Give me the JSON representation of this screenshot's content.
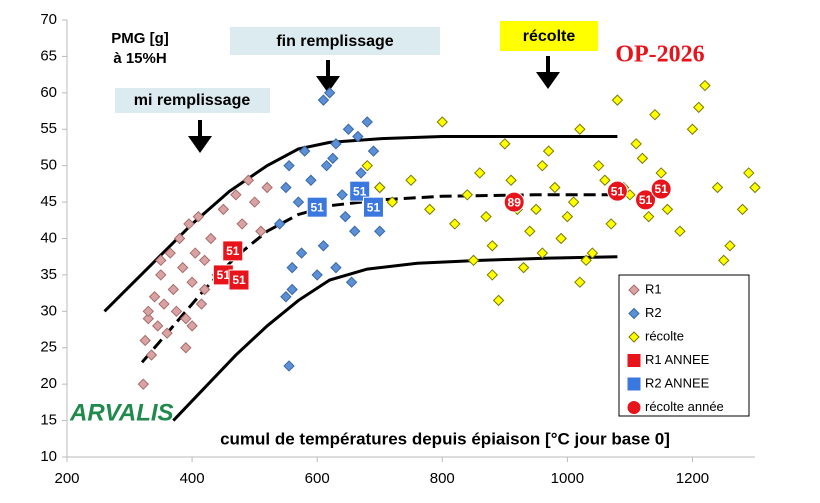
{
  "chart_data": {
    "type": "scatter",
    "xlim": [
      200,
      1300
    ],
    "ylim": [
      10,
      70
    ],
    "xticks": [
      200,
      400,
      600,
      800,
      1000,
      1200
    ],
    "yticks": [
      10,
      15,
      20,
      25,
      30,
      35,
      40,
      45,
      50,
      55,
      60,
      65,
      70
    ],
    "grid": false,
    "legend": "lower right",
    "x_label": "cumul de températures depuis épiaison [°C jour base 0]",
    "y_label": [
      "PMG [g]",
      "à 15%H"
    ],
    "annotations": [
      "mi remplissage",
      "fin remplissage",
      "récolte",
      "OP-2026"
    ],
    "logo": "ARVALIS",
    "series": [
      {
        "name": "R1",
        "marker": "diamond",
        "color": "#d9a3a3",
        "stroke": "#a86d6d",
        "x": [
          322,
          325,
          330,
          335,
          340,
          345,
          350,
          355,
          360,
          365,
          370,
          375,
          380,
          385,
          390,
          395,
          400,
          405,
          410,
          415,
          420,
          430,
          440,
          450,
          460,
          470,
          480,
          490,
          500,
          510,
          520,
          400,
          390,
          420,
          350,
          330
        ],
        "y": [
          20,
          26,
          29,
          24,
          32,
          28,
          35,
          31,
          27,
          38,
          33,
          30,
          40,
          36,
          29,
          42,
          34,
          38,
          43,
          31,
          37,
          40,
          35,
          44,
          39,
          46,
          42,
          48,
          45,
          41,
          47,
          28,
          25,
          33,
          37,
          30
        ]
      },
      {
        "name": "R2",
        "marker": "diamond",
        "color": "#5b8fd6",
        "stroke": "#3a68a8",
        "x": [
          540,
          550,
          555,
          560,
          570,
          580,
          590,
          600,
          610,
          615,
          620,
          630,
          640,
          650,
          660,
          670,
          680,
          690,
          700,
          560,
          575,
          600,
          625,
          645,
          665,
          685,
          555,
          610,
          630,
          550,
          700,
          655
        ],
        "y": [
          42,
          47,
          50,
          36,
          45,
          52,
          48,
          44,
          59,
          50,
          60,
          53,
          46,
          55,
          41,
          49,
          56,
          52,
          47,
          33,
          38,
          35,
          51,
          43,
          54,
          45,
          22.5,
          39,
          36,
          32,
          41,
          34
        ]
      },
      {
        "name": "récolte",
        "marker": "diamond",
        "color": "#ffff00",
        "stroke": "#7a7a00",
        "x": [
          680,
          700,
          720,
          750,
          780,
          800,
          820,
          840,
          860,
          880,
          900,
          920,
          940,
          960,
          980,
          1000,
          1020,
          1040,
          1060,
          1080,
          1100,
          1120,
          1140,
          1160,
          1180,
          1200,
          1220,
          1240,
          1260,
          1280,
          1300,
          850,
          870,
          890,
          910,
          930,
          950,
          970,
          990,
          1010,
          1030,
          1050,
          1070,
          1090,
          1110,
          1130,
          1150,
          1210,
          1250,
          1290,
          880,
          960,
          1020
        ],
        "y": [
          50,
          47,
          45,
          48,
          44,
          56,
          42,
          46,
          49,
          39,
          53,
          44,
          41,
          50,
          47,
          43,
          55,
          38,
          48,
          59,
          46,
          51,
          57,
          44,
          41,
          55,
          61,
          47,
          39,
          44,
          47,
          37,
          43,
          31.5,
          48,
          36,
          44,
          52,
          40,
          45,
          37,
          50,
          42,
          47,
          53,
          43,
          49,
          58,
          37,
          49,
          35,
          38,
          34
        ]
      },
      {
        "name": "R1 ANNEE",
        "marker": "square",
        "color": "#e8141b",
        "stroke": "#ffffff",
        "x": [
          465,
          450,
          475
        ],
        "y": [
          38.3,
          35,
          34.3
        ],
        "labels": [
          "51",
          "51",
          "51"
        ]
      },
      {
        "name": "R2 ANNEE",
        "marker": "square",
        "color": "#3a78e0",
        "stroke": "#ffffff",
        "x": [
          600,
          668,
          690
        ],
        "y": [
          44.3,
          46.5,
          44.3
        ],
        "labels": [
          "51",
          "51",
          "51"
        ]
      },
      {
        "name": "récolte année",
        "marker": "circle",
        "color": "#e8141b",
        "stroke": "#ffffff",
        "x": [
          915,
          1080,
          1125,
          1150
        ],
        "y": [
          45,
          46.5,
          45.3,
          46.8
        ],
        "labels": [
          "89",
          "51",
          "51",
          "51"
        ]
      }
    ],
    "curves": [
      {
        "dashed": false,
        "x": [
          260,
          330,
          400,
          460,
          520,
          570,
          620,
          700,
          800,
          950,
          1080
        ],
        "y": [
          30,
          36,
          42,
          46.5,
          50,
          52.3,
          53.2,
          53.7,
          54,
          54,
          54
        ]
      },
      {
        "dashed": true,
        "x": [
          320,
          370,
          420,
          470,
          520,
          570,
          620,
          700,
          800,
          950,
          1080
        ],
        "y": [
          23,
          28,
          33,
          37.5,
          41,
          43.3,
          44.5,
          45.3,
          45.8,
          46,
          46
        ]
      },
      {
        "dashed": false,
        "x": [
          370,
          420,
          470,
          520,
          570,
          620,
          680,
          760,
          860,
          970,
          1080
        ],
        "y": [
          15,
          19.5,
          24,
          28,
          31.5,
          34.3,
          35.8,
          36.6,
          37,
          37.3,
          37.5
        ]
      }
    ]
  }
}
